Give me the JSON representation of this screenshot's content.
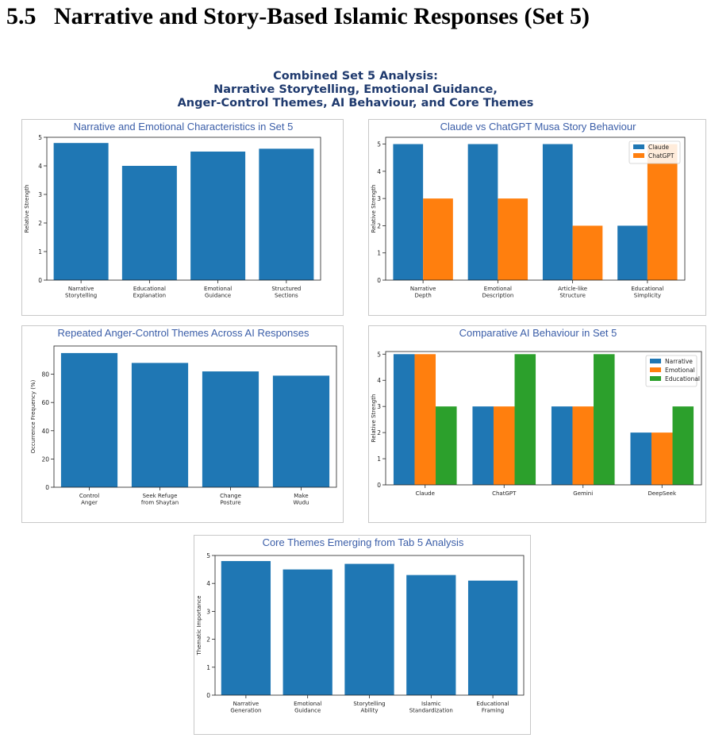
{
  "heading": {
    "number": "5.5",
    "text": "Narrative and Story-Based Islamic Responses (Set 5)"
  },
  "suptitle": [
    "Combined Set 5 Analysis:",
    "Narrative Storytelling, Emotional Guidance,",
    "Anger-Control Themes, AI Behaviour, and Core Themes"
  ],
  "colors": {
    "blue": "#1f77b4",
    "orange": "#ff7f0e",
    "green": "#2ca02c",
    "title": "#3b5ea8"
  },
  "chart_data": [
    {
      "type": "bar",
      "title": "Narrative and Emotional Characteristics in Set 5",
      "ylabel": "Relative Strength",
      "categories": [
        [
          "Narrative",
          "Storytelling"
        ],
        [
          "Educational",
          "Explanation"
        ],
        [
          "Emotional",
          "Guidance"
        ],
        [
          "Structured",
          "Sections"
        ]
      ],
      "values": [
        4.8,
        4.0,
        4.5,
        4.6
      ],
      "ylim": [
        0,
        5
      ],
      "yticks": [
        0,
        1,
        2,
        3,
        4,
        5
      ],
      "grid": false
    },
    {
      "type": "bar",
      "title": "Claude vs ChatGPT Musa Story Behaviour",
      "ylabel": "Relative Strength",
      "categories": [
        [
          "Narrative",
          "Depth"
        ],
        [
          "Emotional",
          "Description"
        ],
        [
          "Article-like",
          "Structure"
        ],
        [
          "Educational",
          "Simplicity"
        ]
      ],
      "series": [
        {
          "name": "Claude",
          "values": [
            5,
            5,
            5,
            2
          ]
        },
        {
          "name": "ChatGPT",
          "values": [
            3,
            3,
            2,
            5
          ]
        }
      ],
      "ylim": [
        0,
        5.25
      ],
      "yticks": [
        0,
        1,
        2,
        3,
        4,
        5
      ],
      "legend": "top-right",
      "grid": false
    },
    {
      "type": "bar",
      "title": "Repeated Anger-Control Themes Across AI Responses",
      "ylabel": "Occurrence Frequency (%)",
      "categories": [
        [
          "Control",
          "Anger"
        ],
        [
          "Seek Refuge",
          "from Shaytan"
        ],
        [
          "Change",
          "Posture"
        ],
        [
          "Make",
          "Wudu"
        ]
      ],
      "values": [
        95,
        88,
        82,
        79
      ],
      "ylim": [
        0,
        100
      ],
      "yticks": [
        0,
        20,
        40,
        60,
        80
      ],
      "grid": false
    },
    {
      "type": "bar",
      "title": "Comparative AI Behaviour in Set 5",
      "ylabel": "Relative Strength",
      "categories": [
        [
          "Claude"
        ],
        [
          "ChatGPT"
        ],
        [
          "Gemini"
        ],
        [
          "DeepSeek"
        ]
      ],
      "series": [
        {
          "name": "Narrative",
          "values": [
            5,
            3,
            3,
            2
          ]
        },
        {
          "name": "Emotional",
          "values": [
            5,
            3,
            3,
            2
          ]
        },
        {
          "name": "Educational",
          "values": [
            3,
            5,
            5,
            3
          ]
        }
      ],
      "ylim": [
        0,
        5.1
      ],
      "yticks": [
        0,
        1,
        2,
        3,
        4,
        5
      ],
      "legend": "top-right",
      "grid": false
    },
    {
      "type": "bar",
      "title": "Core Themes Emerging from Tab 5 Analysis",
      "ylabel": "Thematic Importance",
      "categories": [
        [
          "Narrative",
          "Generation"
        ],
        [
          "Emotional",
          "Guidance"
        ],
        [
          "Storytelling",
          "Ability"
        ],
        [
          "Islamic",
          "Standardization"
        ],
        [
          "Educational",
          "Framing"
        ]
      ],
      "values": [
        4.8,
        4.5,
        4.7,
        4.3,
        4.1
      ],
      "ylim": [
        0,
        5
      ],
      "yticks": [
        0,
        1,
        2,
        3,
        4,
        5
      ],
      "grid": false
    }
  ]
}
